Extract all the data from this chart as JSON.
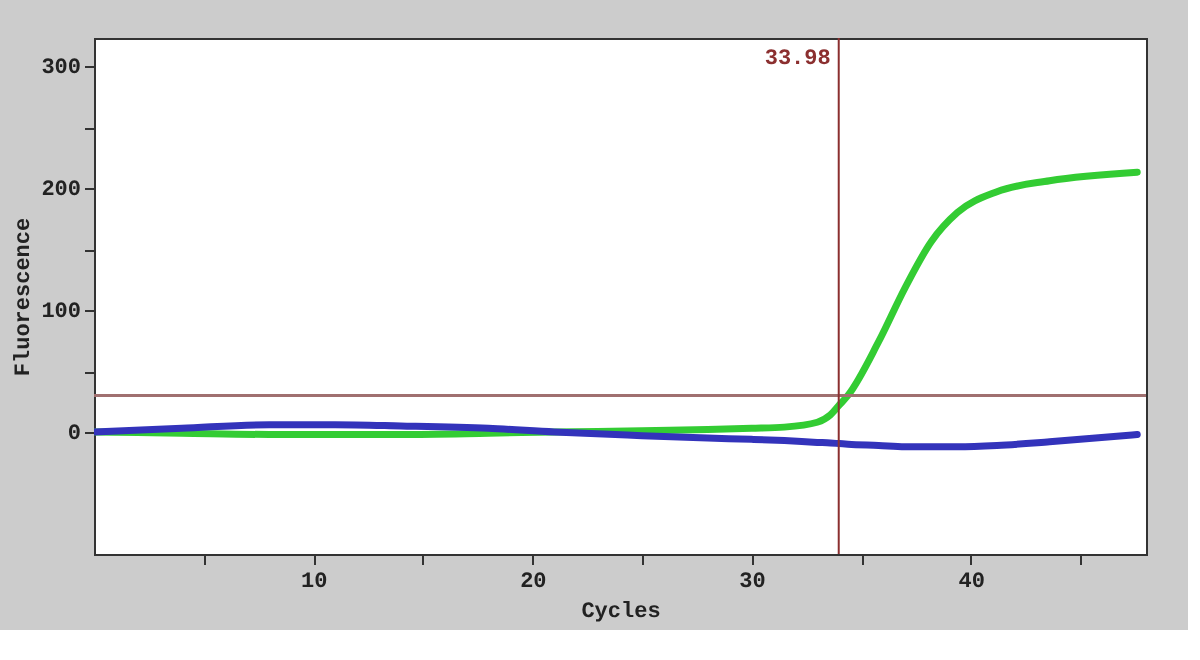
{
  "chart_data": {
    "type": "line",
    "xlabel": "Cycles",
    "ylabel": "Fluorescence",
    "x": [
      0,
      4,
      8,
      11,
      14,
      18,
      21,
      25,
      28,
      30,
      31.5,
      33,
      33.6,
      34,
      34.4,
      35.8,
      37,
      38.2,
      39.4,
      41.2,
      43.6,
      47.6
    ],
    "series": [
      {
        "color": "#33cc33",
        "values": [
          0,
          -1,
          -2,
          -2,
          -2,
          -1,
          0,
          1,
          2,
          3,
          4,
          8,
          14,
          22,
          30,
          74,
          118,
          156,
          180,
          197,
          206,
          213
        ]
      },
      {
        "color": "#3333bb",
        "values": [
          0,
          3,
          6,
          6,
          5,
          3,
          0,
          -3,
          -5,
          -6,
          -7,
          -8.5,
          -9,
          -9.5,
          -10,
          -11,
          -12,
          -12,
          -12,
          -11,
          -8,
          -2
        ]
      }
    ],
    "xlim": [
      0,
      48
    ],
    "ylim": [
      -100,
      323
    ],
    "xticks": [
      {
        "value": 5,
        "label": null
      },
      10,
      {
        "value": 15,
        "label": null
      },
      20,
      {
        "value": 25,
        "label": null
      },
      30,
      {
        "value": 35,
        "label": null
      },
      40,
      {
        "value": 45,
        "label": null
      }
    ],
    "yticks": [
      {
        "value": 50,
        "label": null
      },
      0,
      100,
      {
        "value": 150,
        "label": null
      },
      200,
      {
        "value": 250,
        "label": null
      },
      300
    ],
    "ref_lines": [
      {
        "axis": "y",
        "value": 30,
        "label": null,
        "color": "#a07070"
      },
      {
        "axis": "x",
        "value": 33.98,
        "label": "33.98",
        "color": "#8b2f2f"
      }
    ],
    "grid": false,
    "legend": false,
    "marker": "none",
    "line_style": "solid"
  }
}
